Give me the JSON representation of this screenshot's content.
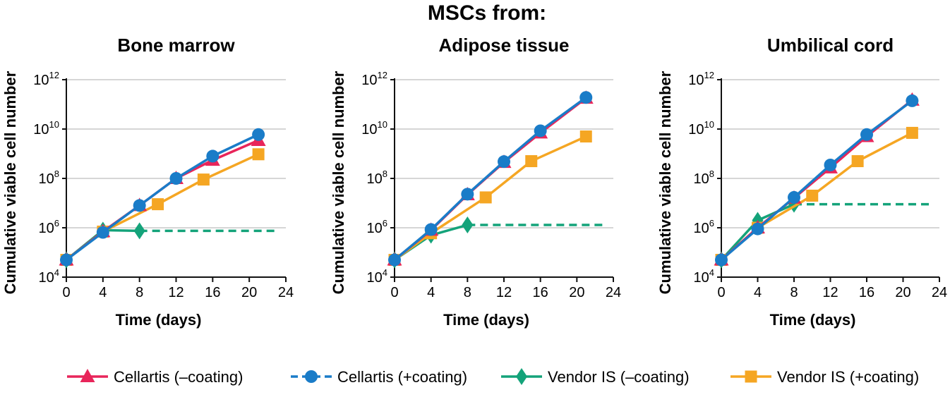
{
  "figure": {
    "supertitle": "MSCs from:",
    "colors": {
      "cellartis_minus": "#e8255a",
      "cellartis_plus": "#1a7cc8",
      "vendor_minus": "#14a37a",
      "vendor_plus": "#f5a623",
      "grid": "#c8c8c8",
      "axis": "#111111"
    },
    "legend": [
      {
        "key": "cellartis_minus",
        "label": "Cellartis (–coating)",
        "marker": "triangle",
        "dash": false
      },
      {
        "key": "cellartis_plus",
        "label": "Cellartis (+coating)",
        "marker": "circle",
        "dash": true
      },
      {
        "key": "vendor_minus",
        "label": "Vendor IS (–coating)",
        "marker": "diamond",
        "dash": false
      },
      {
        "key": "vendor_plus",
        "label": "Vendor IS (+coating)",
        "marker": "square",
        "dash": false
      }
    ]
  },
  "chart_data": [
    {
      "type": "line",
      "title": "Bone marrow",
      "xlabel": "Time (days)",
      "ylabel": "Cumulative viable cell number",
      "xlim": [
        0,
        24
      ],
      "xticks": [
        0,
        4,
        8,
        12,
        16,
        20,
        24
      ],
      "ylim_log10": [
        4,
        12
      ],
      "yticks": [
        {
          "base": "10",
          "exp": "4"
        },
        {
          "base": "10",
          "exp": "6"
        },
        {
          "base": "10",
          "exp": "8"
        },
        {
          "base": "10",
          "exp": "10"
        },
        {
          "base": "10",
          "exp": "12"
        }
      ],
      "grid": true,
      "series": [
        {
          "key": "cellartis_minus",
          "name": "Cellartis (–coating)",
          "x": [
            0,
            4,
            8,
            12,
            16,
            21
          ],
          "y": [
            50000,
            700000,
            8000000,
            100000000,
            550000000,
            3500000000
          ]
        },
        {
          "key": "cellartis_plus",
          "name": "Cellartis (+coating)",
          "x": [
            0,
            4,
            8,
            12,
            16,
            21
          ],
          "y": [
            50000,
            650000,
            8000000,
            100000000,
            800000000,
            6000000000
          ]
        },
        {
          "key": "vendor_minus",
          "name": "Vendor IS (–coating)",
          "x": [
            0,
            4,
            8
          ],
          "y": [
            50000,
            800000,
            750000
          ],
          "extension": {
            "to_x": 23,
            "y": 750000
          }
        },
        {
          "key": "vendor_plus",
          "name": "Vendor IS (+coating)",
          "x": [
            0,
            4,
            10,
            15,
            21
          ],
          "y": [
            50000,
            700000,
            9000000,
            90000000,
            950000000
          ]
        }
      ]
    },
    {
      "type": "line",
      "title": "Adipose tissue",
      "xlabel": "Time (days)",
      "ylabel": "Cumulative viable cell number",
      "xlim": [
        0,
        24
      ],
      "xticks": [
        0,
        4,
        8,
        12,
        16,
        20,
        24
      ],
      "ylim_log10": [
        4,
        12
      ],
      "yticks": [
        {
          "base": "10",
          "exp": "4"
        },
        {
          "base": "10",
          "exp": "6"
        },
        {
          "base": "10",
          "exp": "8"
        },
        {
          "base": "10",
          "exp": "10"
        },
        {
          "base": "10",
          "exp": "12"
        }
      ],
      "grid": true,
      "series": [
        {
          "key": "cellartis_minus",
          "name": "Cellartis (–coating)",
          "x": [
            0,
            4,
            8,
            12,
            16,
            21
          ],
          "y": [
            50000,
            800000,
            22000000,
            450000000,
            7000000000,
            180000000000
          ]
        },
        {
          "key": "cellartis_plus",
          "name": "Cellartis (+coating)",
          "x": [
            0,
            4,
            8,
            12,
            16,
            21
          ],
          "y": [
            50000,
            850000,
            23000000,
            480000000,
            8500000000,
            190000000000
          ]
        },
        {
          "key": "vendor_minus",
          "name": "Vendor IS (–coating)",
          "x": [
            0,
            4,
            8
          ],
          "y": [
            50000,
            500000,
            1300000
          ],
          "extension": {
            "to_x": 23,
            "y": 1300000
          }
        },
        {
          "key": "vendor_plus",
          "name": "Vendor IS (+coating)",
          "x": [
            0,
            4,
            10,
            15,
            21
          ],
          "y": [
            50000,
            600000,
            17000000,
            500000000,
            5000000000
          ]
        }
      ]
    },
    {
      "type": "line",
      "title": "Umbilical cord",
      "xlabel": "Time (days)",
      "ylabel": "Cumulative viable cell number",
      "xlim": [
        0,
        24
      ],
      "xticks": [
        0,
        4,
        8,
        12,
        16,
        20,
        24
      ],
      "ylim_log10": [
        4,
        12
      ],
      "yticks": [
        {
          "base": "10",
          "exp": "4"
        },
        {
          "base": "10",
          "exp": "6"
        },
        {
          "base": "10",
          "exp": "8"
        },
        {
          "base": "10",
          "exp": "10"
        },
        {
          "base": "10",
          "exp": "12"
        }
      ],
      "grid": true,
      "series": [
        {
          "key": "cellartis_minus",
          "name": "Cellartis (–coating)",
          "x": [
            0,
            4,
            8,
            12,
            16,
            21
          ],
          "y": [
            50000,
            1000000,
            16000000,
            270000000,
            5000000000,
            150000000000
          ]
        },
        {
          "key": "cellartis_plus",
          "name": "Cellartis (+coating)",
          "x": [
            0,
            4,
            8,
            12,
            16,
            21
          ],
          "y": [
            50000,
            900000,
            17000000,
            350000000,
            6000000000,
            140000000000
          ]
        },
        {
          "key": "vendor_minus",
          "name": "Vendor IS (–coating)",
          "x": [
            0,
            4,
            8
          ],
          "y": [
            50000,
            2000000,
            9000000
          ],
          "extension": {
            "to_x": 23,
            "y": 9000000
          }
        },
        {
          "key": "vendor_plus",
          "name": "Vendor IS (+coating)",
          "x": [
            0,
            4,
            10,
            15,
            21
          ],
          "y": [
            50000,
            1000000,
            20000000,
            500000000,
            7000000000
          ]
        }
      ]
    }
  ]
}
